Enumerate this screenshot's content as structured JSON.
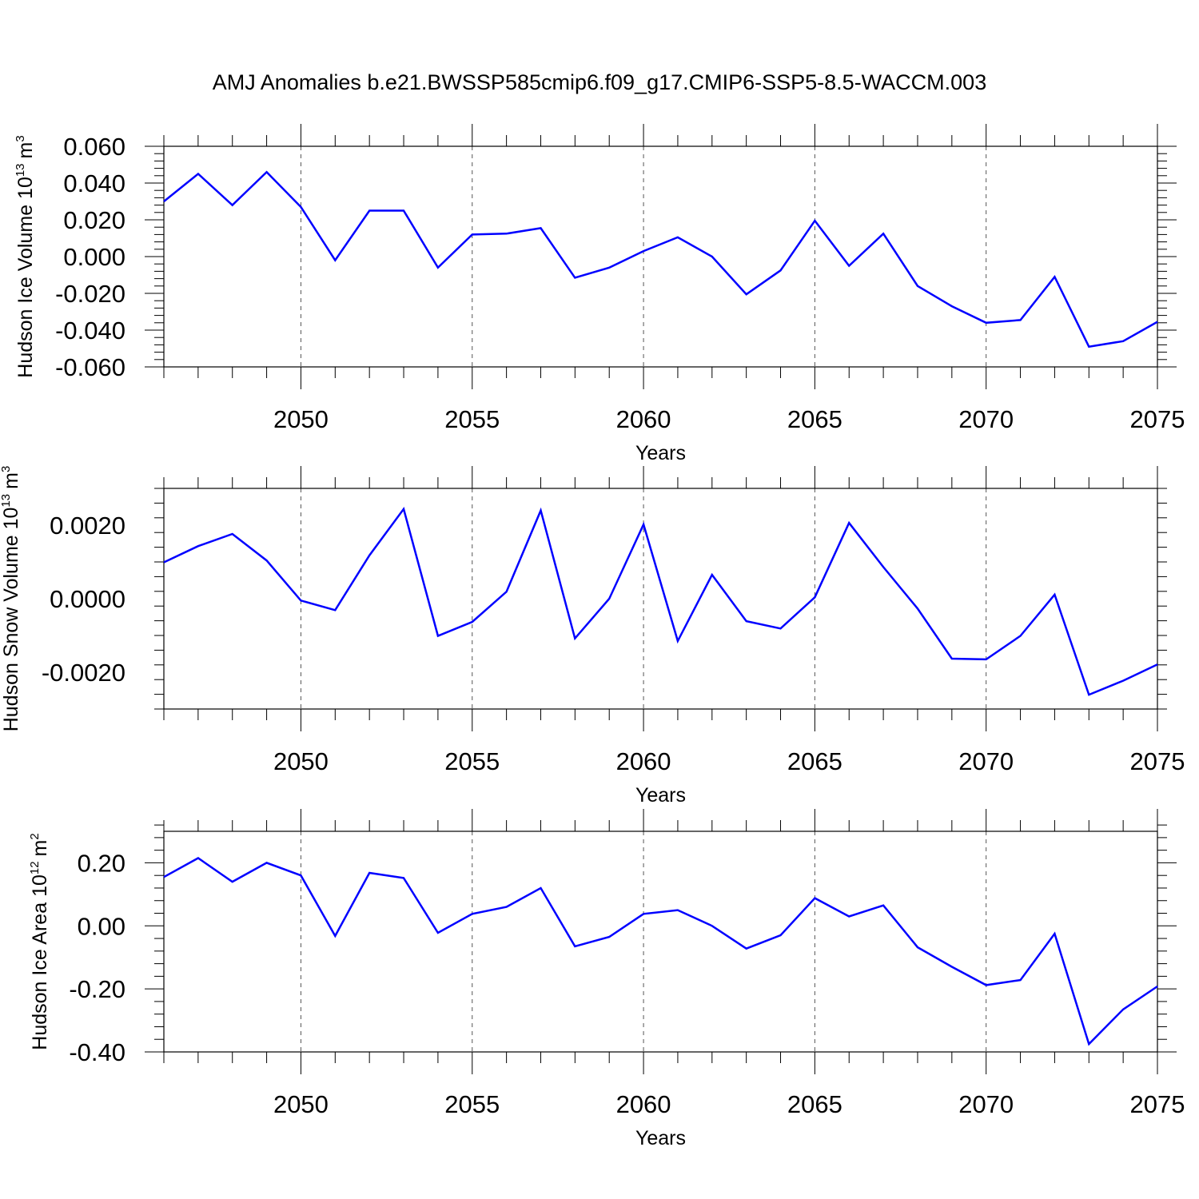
{
  "title": "AMJ Anomalies b.e21.BWSSP585cmip6.f09_g17.CMIP6-SSP5-8.5-WACCM.003",
  "line_color": "#0000ff",
  "chart_data": [
    {
      "type": "line",
      "title": "AMJ Anomalies b.e21.BWSSP585cmip6.f09_g17.CMIP6-SSP5-8.5-WACCM.003",
      "xlabel": "Years",
      "ylabel_main": "Hudson Ice Volume 10",
      "ylabel_exp": "13",
      "ylabel_unit": "m",
      "ylabel_unit_exp": "3",
      "x": [
        2046,
        2047,
        2048,
        2049,
        2050,
        2051,
        2052,
        2053,
        2054,
        2055,
        2056,
        2057,
        2058,
        2059,
        2060,
        2061,
        2062,
        2063,
        2064,
        2065,
        2066,
        2067,
        2068,
        2069,
        2070,
        2071,
        2072,
        2073,
        2074,
        2075
      ],
      "values": [
        0.03,
        0.045,
        0.028,
        0.046,
        0.027,
        -0.002,
        0.025,
        0.025,
        -0.006,
        0.012,
        0.0125,
        0.0155,
        -0.0115,
        -0.006,
        0.003,
        0.0105,
        0.0,
        -0.0205,
        -0.0075,
        0.0195,
        -0.005,
        0.0125,
        -0.016,
        -0.027,
        -0.036,
        -0.0345,
        -0.011,
        -0.049,
        -0.046,
        -0.0355
      ],
      "xlim": [
        2046,
        2075
      ],
      "ylim": [
        -0.06,
        0.06
      ],
      "xticks": [
        2050,
        2055,
        2060,
        2065,
        2070,
        2075
      ],
      "xtick_labels": [
        "2050",
        "2055",
        "2060",
        "2065",
        "2070",
        "2075"
      ],
      "yticks": [
        0.06,
        0.04,
        0.02,
        0.0,
        -0.02,
        -0.04,
        -0.06
      ],
      "ytick_labels": [
        "0.060",
        "0.040",
        "0.020",
        "0.000",
        "-0.020",
        "-0.040",
        "-0.060"
      ],
      "grid": "vertical dashed"
    },
    {
      "type": "line",
      "xlabel": "Years",
      "ylabel_main": "Hudson Snow Volume 10",
      "ylabel_exp": "13",
      "ylabel_unit": "m",
      "ylabel_unit_exp": "3",
      "x": [
        2046,
        2047,
        2048,
        2049,
        2050,
        2051,
        2052,
        2053,
        2054,
        2055,
        2056,
        2057,
        2058,
        2059,
        2060,
        2061,
        2062,
        2063,
        2064,
        2065,
        2066,
        2067,
        2068,
        2069,
        2070,
        2071,
        2072,
        2073,
        2074,
        2075
      ],
      "values": [
        0.00099,
        0.00143,
        0.00176,
        0.00104,
        -5e-05,
        -0.00031,
        0.00118,
        0.00244,
        -0.00101,
        -0.00063,
        0.00019,
        0.0024,
        -0.00108,
        0.0,
        0.00202,
        -0.00115,
        0.00065,
        -0.00061,
        -0.00081,
        4e-05,
        0.00206,
        0.00086,
        -0.00027,
        -0.00163,
        -0.00165,
        -0.00101,
        0.00011,
        -0.00261,
        -0.00223,
        -0.00179
      ],
      "xlim": [
        2046,
        2075
      ],
      "ylim": [
        -0.003,
        0.003
      ],
      "xticks": [
        2050,
        2055,
        2060,
        2065,
        2070,
        2075
      ],
      "xtick_labels": [
        "2050",
        "2055",
        "2060",
        "2065",
        "2070",
        "2075"
      ],
      "yticks": [
        0.002,
        0.0,
        -0.002
      ],
      "ytick_labels": [
        "0.0020",
        "0.0000",
        "-0.0020"
      ],
      "grid": "vertical dashed"
    },
    {
      "type": "line",
      "xlabel": "Years",
      "ylabel_main": "Hudson Ice Area 10",
      "ylabel_exp": "12",
      "ylabel_unit": "m",
      "ylabel_unit_exp": "2",
      "x": [
        2046,
        2047,
        2048,
        2049,
        2050,
        2051,
        2052,
        2053,
        2054,
        2055,
        2056,
        2057,
        2058,
        2059,
        2060,
        2061,
        2062,
        2063,
        2064,
        2065,
        2066,
        2067,
        2068,
        2069,
        2070,
        2071,
        2072,
        2073,
        2074,
        2075
      ],
      "values": [
        0.155,
        0.215,
        0.14,
        0.2,
        0.16,
        -0.032,
        0.168,
        0.152,
        -0.022,
        0.038,
        0.06,
        0.12,
        -0.065,
        -0.035,
        0.038,
        0.05,
        0.0,
        -0.072,
        -0.03,
        0.088,
        0.03,
        0.065,
        -0.068,
        -0.13,
        -0.188,
        -0.172,
        -0.025,
        -0.375,
        -0.265,
        -0.192
      ],
      "xlim": [
        2046,
        2075
      ],
      "ylim": [
        -0.4,
        0.3
      ],
      "xticks": [
        2050,
        2055,
        2060,
        2065,
        2070,
        2075
      ],
      "xtick_labels": [
        "2050",
        "2055",
        "2060",
        "2065",
        "2070",
        "2075"
      ],
      "yticks": [
        0.2,
        0.0,
        -0.2,
        -0.4
      ],
      "ytick_labels": [
        "0.20",
        "0.00",
        "-0.20",
        "-0.40"
      ],
      "grid": "vertical dashed"
    }
  ]
}
